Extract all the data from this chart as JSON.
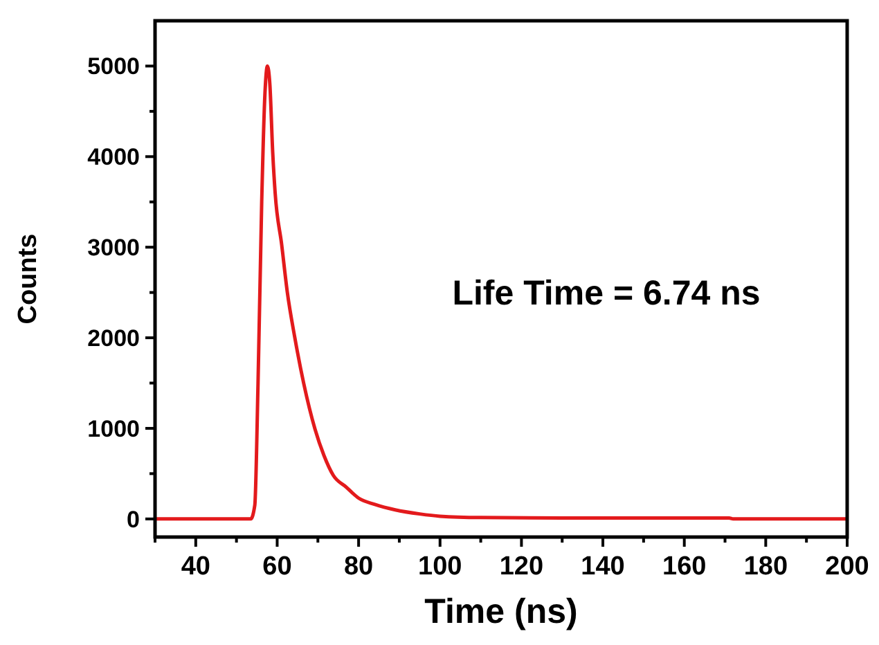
{
  "chart_data": {
    "type": "line",
    "xlabel": "Time (ns)",
    "ylabel": "Counts",
    "annotations": [
      "Life Time = 6.74 ns"
    ],
    "xlim": [
      30,
      200
    ],
    "xticks": [
      {
        "value": 30,
        "label": null
      },
      40,
      {
        "value": 50,
        "label": null
      },
      60,
      {
        "value": 70,
        "label": null
      },
      80,
      {
        "value": 90,
        "label": null
      },
      100,
      {
        "value": 110,
        "label": null
      },
      120,
      {
        "value": 130,
        "label": null
      },
      140,
      {
        "value": 150,
        "label": null
      },
      160,
      {
        "value": 170,
        "label": null
      },
      180,
      {
        "value": 190,
        "label": null
      },
      200
    ],
    "ylim": [
      -200,
      5500
    ],
    "yticks": [
      0,
      {
        "value": 500,
        "label": null
      },
      1000,
      {
        "value": 1500,
        "label": null
      },
      2000,
      {
        "value": 2500,
        "label": null
      },
      3000,
      {
        "value": 3500,
        "label": null
      },
      4000,
      {
        "value": 4500,
        "label": null
      },
      5000
    ],
    "grid": false,
    "line_style": "solid",
    "series": [
      {
        "color": "#e31a1c",
        "x": [
          30,
          40,
          50,
          53.5,
          54.5,
          55.3,
          56.2,
          57,
          57.6,
          58.2,
          58.9,
          59.5,
          61.1,
          62.5,
          64.3,
          66.5,
          69.3,
          71.5,
          73.8,
          77,
          80,
          84,
          89,
          95,
          100,
          110,
          130,
          150,
          171,
          172,
          185,
          200
        ],
        "values": [
          0,
          0,
          0,
          0,
          150,
          1500,
          3500,
          4700,
          5000,
          4800,
          4050,
          3600,
          3030,
          2500,
          2010,
          1500,
          990,
          700,
          480,
          350,
          230,
          160,
          100,
          55,
          30,
          15,
          10,
          10,
          10,
          0,
          0,
          0
        ]
      }
    ]
  }
}
